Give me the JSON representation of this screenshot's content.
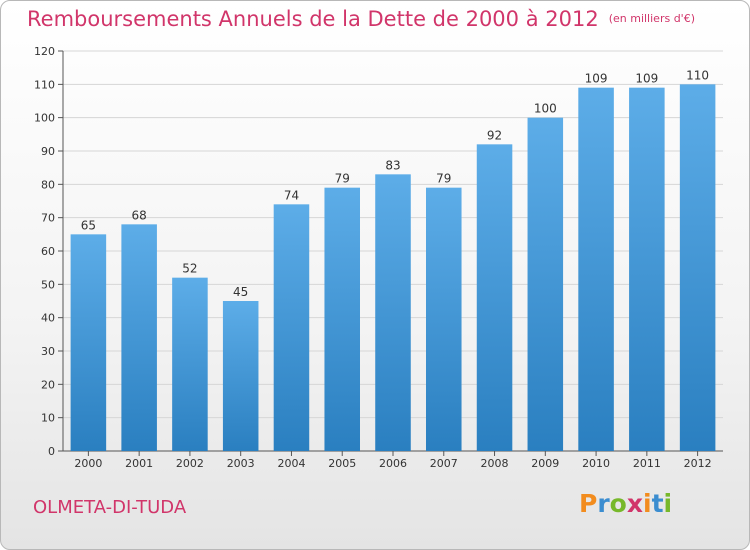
{
  "header": {
    "title": "Remboursements Annuels de la Dette de 2000 à 2012",
    "unit": "(en milliers d'€)"
  },
  "footer": {
    "city": "OLMETA-DI-TUDA",
    "logo": "Proxiti"
  },
  "colors": {
    "accent": "#d1356a",
    "bar_top": "#5dade8",
    "bar_bottom": "#2a7fc0"
  },
  "chart_data": {
    "type": "bar",
    "title": "Remboursements Annuels de la Dette de 2000 à 2012",
    "subtitle": "(en milliers d'€)",
    "xlabel": "",
    "ylabel": "",
    "categories": [
      "2000",
      "2001",
      "2002",
      "2003",
      "2004",
      "2005",
      "2006",
      "2007",
      "2008",
      "2009",
      "2010",
      "2011",
      "2012"
    ],
    "values": [
      65,
      68,
      52,
      45,
      74,
      79,
      83,
      79,
      92,
      100,
      109,
      109,
      110
    ],
    "ylim": [
      0,
      120
    ],
    "yticks": [
      0,
      10,
      20,
      30,
      40,
      50,
      60,
      70,
      80,
      90,
      100,
      110,
      120
    ],
    "grid": true,
    "legend": "none"
  }
}
